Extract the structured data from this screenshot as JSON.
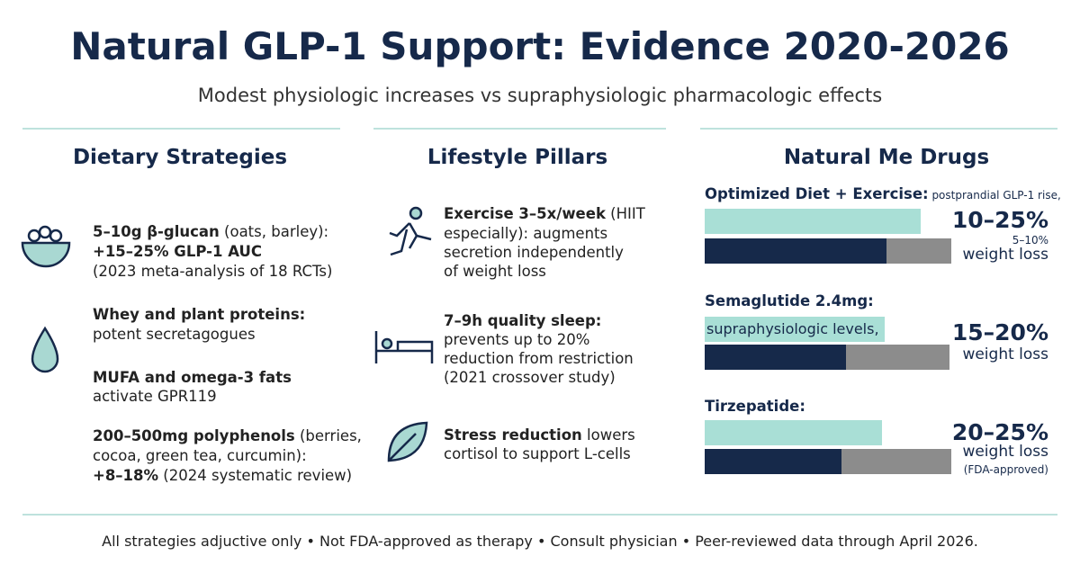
{
  "header": {
    "title": "Natural GLP-1 Support: Evidence 2020-2026",
    "subtitle": "Modest physiologic increases vs supraphysiologic pharmacologic effects"
  },
  "columns": [
    {
      "heading": "Dietary Strategies",
      "items": [
        {
          "lines": [
            {
              "bold": "5–10g β-glucan",
              "text": " (oats, barley):"
            },
            {
              "bold": "+15–25% GLP-1 AUC"
            },
            {
              "text": "(2023 meta-analysis of 18 RCTs)"
            }
          ]
        },
        {
          "lines": [
            {
              "bold": "Whey and plant proteins:"
            },
            {
              "text": "potent secretagogues"
            }
          ]
        },
        {
          "lines": [
            {
              "bold": "MUFA and omega-3 fats"
            },
            {
              "text": "activate GPR119"
            }
          ]
        },
        {
          "lines": [
            {
              "bold": "200–500mg polyphenols",
              "text": " (berries,"
            },
            {
              "text": "cocoa, green tea, curcumin):"
            },
            {
              "bold": "+8–18%",
              "text": " (2024 systematic review)"
            }
          ]
        }
      ]
    },
    {
      "heading": "Lifestyle Pillars",
      "items": [
        {
          "lines": [
            {
              "bold": "Exercise 3–5x/week",
              "text": " (HIIT"
            },
            {
              "text": "especially): augments"
            },
            {
              "text": "secretion independently"
            },
            {
              "text": "of weight loss"
            }
          ]
        },
        {
          "lines": [
            {
              "bold": "7–9h quality sleep:"
            },
            {
              "text": "prevents up to 20%"
            },
            {
              "text": "reduction from restriction"
            },
            {
              "text": "(2021 crossover study)"
            }
          ]
        },
        {
          "lines": [
            {
              "bold": "Stress reduction",
              "text": " lowers"
            },
            {
              "text": "cortisol to support L-cells"
            }
          ]
        }
      ]
    }
  ],
  "drugs": {
    "heading": "Natural Me Drugs",
    "items": [
      {
        "label": {
          "bold": "Optimized Diet + Exercise:",
          "text": " postprandial GLP-1 rise,"
        },
        "range": "10–25%",
        "notes": [
          "5–10%",
          "weight loss"
        ]
      },
      {
        "label": {
          "bold": "Semaglutide 2.4mg:"
        },
        "inner": "supraphysiologic levels,",
        "range": "15–20%",
        "notes": [
          "weight loss"
        ]
      },
      {
        "label": {
          "bold": "Tirzepatide:"
        },
        "range": "20–25%",
        "notes": [
          "weight loss",
          "(FDA-approved)"
        ]
      }
    ]
  },
  "footer": "All strategies adjuctive only • Not FDA-approved as therapy • Consult physician • Peer-reviewed data through April 2026."
}
